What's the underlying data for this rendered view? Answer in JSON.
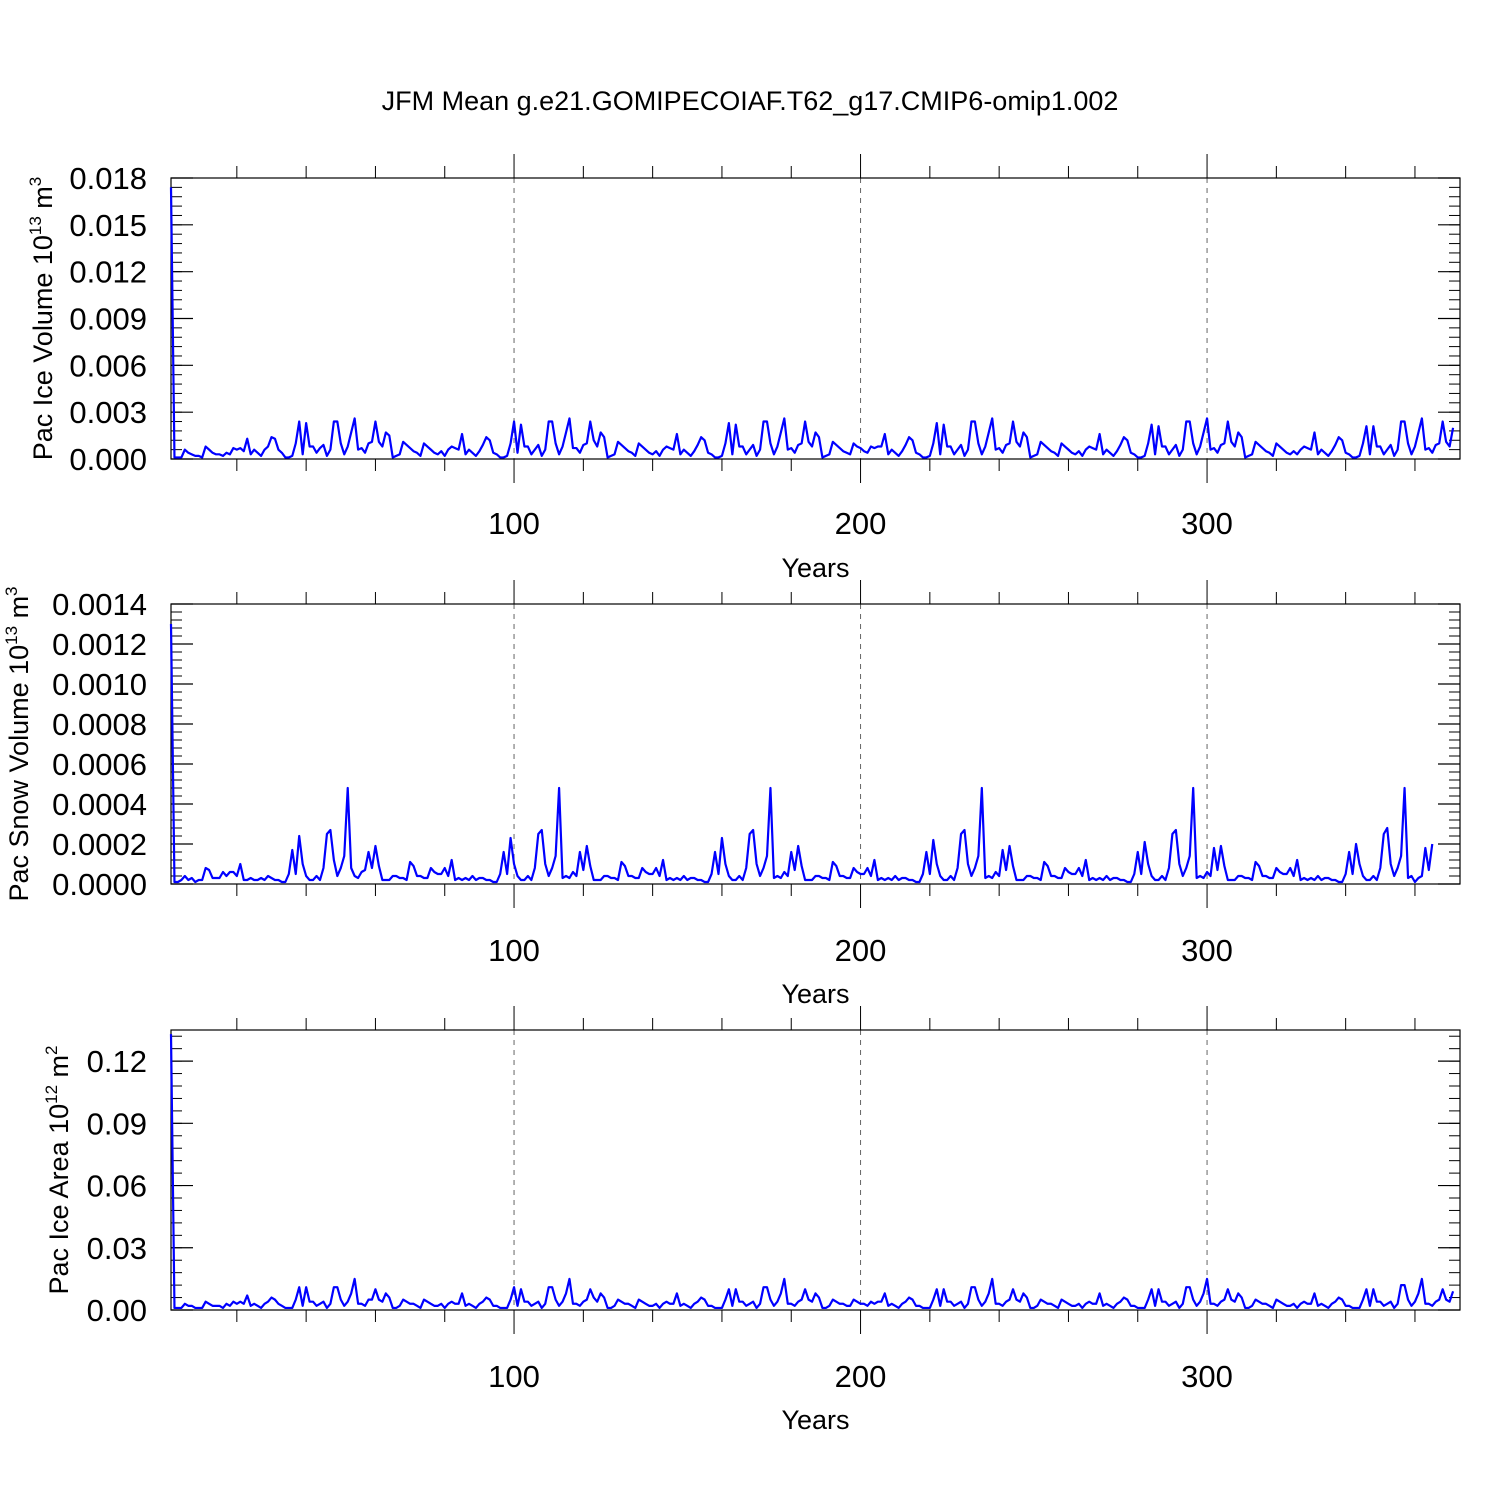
{
  "title": "JFM Mean g.e21.GOMIPECOIAF.T62_g17.CMIP6-omip1.002",
  "colors": {
    "series": "#0000ff",
    "axis": "#000000",
    "grid": "#666666"
  },
  "chart_data": [
    {
      "type": "line",
      "id": "ice-volume",
      "ylabel": {
        "text": "Pac Ice Volume 10",
        "exp": "13",
        "unit": " m",
        "unit_exp": "3"
      },
      "xlabel": "Years",
      "xlim": [
        1,
        373
      ],
      "ylim": [
        0,
        0.018
      ],
      "yticks": [
        0.0,
        0.003,
        0.006,
        0.009,
        0.012,
        0.015,
        0.018
      ],
      "ytick_labels": [
        "0.000",
        "0.003",
        "0.006",
        "0.009",
        "0.012",
        "0.015",
        "0.018"
      ],
      "xticks": [
        100,
        200,
        300
      ],
      "xtick_labels": [
        "100",
        "200",
        "300"
      ],
      "grid_x": true,
      "x_start": 1,
      "values": [
        0.0174,
        0.0001,
        0.0001,
        0.0001,
        0.0006,
        0.0004,
        0.0003,
        0.0002,
        0.0002,
        0.0001,
        0.0008,
        0.0006,
        0.0004,
        0.0003,
        0.0003,
        0.0002,
        0.0004,
        0.0003,
        0.0007,
        0.0006,
        0.0007,
        0.0005,
        0.0013,
        0.0003,
        0.0006,
        0.0004,
        0.0002,
        0.0006,
        0.0008,
        0.0014,
        0.0013,
        0.0006,
        0.0004,
        0.0001,
        0.0001,
        0.0002,
        0.001,
        0.0024,
        0.0003,
        0.0023,
        0.0008,
        0.0008,
        0.0004,
        0.0007,
        0.0009,
        0.0002,
        0.0006,
        0.0024,
        0.0024,
        0.001,
        0.0003,
        0.0008,
        0.0017,
        0.0026,
        0.0006,
        0.0007,
        0.0004,
        0.001,
        0.0011,
        0.0024,
        0.0011,
        0.0008,
        0.0017,
        0.0015,
        0.0001,
        0.0002,
        0.0003,
        0.0011,
        0.0009,
        0.0007,
        0.0005,
        0.0004,
        0.0002,
        0.001,
        0.0008,
        0.0006,
        0.0004,
        0.0003,
        0.0005,
        0.0002,
        0.0006,
        0.0008,
        0.0007,
        0.0006,
        0.0016,
        0.0003,
        0.0006,
        0.0004,
        0.0002,
        0.0005,
        0.0009,
        0.0014,
        0.0012,
        0.0004,
        0.0003,
        0.0001,
        0.0001,
        0.0002,
        0.001,
        0.0024,
        0.0004,
        0.0022,
        0.0008,
        0.0008,
        0.0003,
        0.0006,
        0.0009,
        0.0002,
        0.0006,
        0.0024,
        0.0024,
        0.001,
        0.0003,
        0.0008,
        0.0017,
        0.0026,
        0.0007,
        0.0007,
        0.0004,
        0.0009,
        0.001,
        0.0024,
        0.0012,
        0.0008,
        0.0017,
        0.0014,
        0.0001,
        0.0002,
        0.0003,
        0.0011,
        0.0009,
        0.0007,
        0.0005,
        0.0004,
        0.0002,
        0.001,
        0.0008,
        0.0006,
        0.0004,
        0.0003,
        0.0005,
        0.0002,
        0.0006,
        0.0008,
        0.0007,
        0.0006,
        0.0016,
        0.0003,
        0.0006,
        0.0004,
        0.0002,
        0.0005,
        0.0009,
        0.0014,
        0.0012,
        0.0004,
        0.0003,
        0.0001,
        0.0001,
        0.0002,
        0.001,
        0.0023,
        0.0003,
        0.0022,
        0.0008,
        0.0008,
        0.0003,
        0.0006,
        0.0009,
        0.0002,
        0.0006,
        0.0024,
        0.0024,
        0.001,
        0.0003,
        0.0008,
        0.0017,
        0.0026,
        0.0006,
        0.0007,
        0.0004,
        0.0009,
        0.001,
        0.0024,
        0.0011,
        0.0008,
        0.0017,
        0.0014,
        0.0001,
        0.0002,
        0.0003,
        0.0011,
        0.0009,
        0.0007,
        0.0005,
        0.0004,
        0.0003,
        0.001,
        0.0008,
        0.0007,
        0.0005,
        0.0004,
        0.0008,
        0.0007,
        0.0008,
        0.0008,
        0.0016,
        0.0003,
        0.0006,
        0.0004,
        0.0002,
        0.0005,
        0.0009,
        0.0014,
        0.0012,
        0.0004,
        0.0003,
        0.0001,
        0.0001,
        0.0002,
        0.001,
        0.0023,
        0.0003,
        0.0022,
        0.0008,
        0.0008,
        0.0003,
        0.0006,
        0.0009,
        0.0002,
        0.0006,
        0.0024,
        0.0024,
        0.001,
        0.0003,
        0.0008,
        0.0017,
        0.0026,
        0.0006,
        0.0007,
        0.0004,
        0.0009,
        0.001,
        0.0024,
        0.0011,
        0.0008,
        0.0017,
        0.0014,
        0.0001,
        0.0002,
        0.0003,
        0.0011,
        0.0009,
        0.0007,
        0.0005,
        0.0004,
        0.0002,
        0.001,
        0.0008,
        0.0006,
        0.0004,
        0.0003,
        0.0005,
        0.0002,
        0.0006,
        0.0008,
        0.0007,
        0.0006,
        0.0016,
        0.0003,
        0.0006,
        0.0004,
        0.0002,
        0.0005,
        0.0009,
        0.0014,
        0.0012,
        0.0004,
        0.0003,
        0.0001,
        0.0001,
        0.0002,
        0.001,
        0.0022,
        0.0003,
        0.0021,
        0.0008,
        0.0008,
        0.0003,
        0.0006,
        0.0009,
        0.0002,
        0.0006,
        0.0024,
        0.0024,
        0.001,
        0.0003,
        0.0008,
        0.0017,
        0.0026,
        0.0006,
        0.0007,
        0.0004,
        0.0009,
        0.001,
        0.0024,
        0.0011,
        0.0008,
        0.0017,
        0.0014,
        0.0001,
        0.0002,
        0.0003,
        0.0011,
        0.0009,
        0.0007,
        0.0005,
        0.0004,
        0.0002,
        0.001,
        0.0008,
        0.0006,
        0.0004,
        0.0003,
        0.0005,
        0.0003,
        0.0006,
        0.0008,
        0.0007,
        0.0006,
        0.0017,
        0.0003,
        0.0006,
        0.0004,
        0.0002,
        0.0005,
        0.0009,
        0.0014,
        0.0012,
        0.0004,
        0.0003,
        0.0001,
        0.0001,
        0.0002,
        0.001,
        0.0021,
        0.0003,
        0.0021,
        0.0008,
        0.0008,
        0.0003,
        0.0006,
        0.0009,
        0.0002,
        0.0006,
        0.0024,
        0.0024,
        0.001,
        0.0003,
        0.0008,
        0.0017,
        0.0026,
        0.0006,
        0.0007,
        0.0004,
        0.0009,
        0.001,
        0.0024,
        0.0011,
        0.0008,
        0.002
      ]
    },
    {
      "type": "line",
      "id": "snow-volume",
      "ylabel": {
        "text": "Pac Snow Volume 10",
        "exp": "13",
        "unit": " m",
        "unit_exp": "3"
      },
      "xlabel": "Years",
      "xlim": [
        1,
        373
      ],
      "ylim": [
        0,
        0.0014
      ],
      "yticks": [
        0.0,
        0.0002,
        0.0004,
        0.0006,
        0.0008,
        0.001,
        0.0012,
        0.0014
      ],
      "ytick_labels": [
        "0.0000",
        "0.0002",
        "0.0004",
        "0.0006",
        "0.0008",
        "0.0010",
        "0.0012",
        "0.0014"
      ],
      "xticks": [
        100,
        200,
        300
      ],
      "xtick_labels": [
        "100",
        "200",
        "300"
      ],
      "grid_x": true,
      "x_start": 1,
      "values": [
        0.0013,
        1e-05,
        1e-05,
        2e-05,
        4e-05,
        2e-05,
        3e-05,
        1e-05,
        2e-05,
        2e-05,
        8e-05,
        7e-05,
        3e-05,
        3e-05,
        3e-05,
        6e-05,
        4e-05,
        6e-05,
        6e-05,
        4e-05,
        0.0001,
        2e-05,
        2e-05,
        3e-05,
        2e-05,
        2e-05,
        3e-05,
        2e-05,
        4e-05,
        3e-05,
        2e-05,
        2e-05,
        1e-05,
        1e-05,
        5e-05,
        0.00017,
        5e-05,
        0.00024,
        0.0001,
        4e-05,
        2e-05,
        2e-05,
        4e-05,
        2e-05,
        8e-05,
        0.00025,
        0.00027,
        0.00012,
        4e-05,
        8e-05,
        0.00014,
        0.00048,
        8e-05,
        4e-05,
        3e-05,
        6e-05,
        7e-05,
        0.00016,
        8e-05,
        0.00019,
        9e-05,
        2e-05,
        2e-05,
        2e-05,
        4e-05,
        4e-05,
        3e-05,
        3e-05,
        2e-05,
        0.00011,
        9e-05,
        4e-05,
        4e-05,
        3e-05,
        3e-05,
        8e-05,
        6e-05,
        5e-05,
        5e-05,
        8e-05,
        4e-05,
        0.00012,
        2e-05,
        3e-05,
        2e-05,
        3e-05,
        2e-05,
        4e-05,
        2e-05,
        3e-05,
        3e-05,
        2e-05,
        2e-05,
        1e-05,
        1e-05,
        5e-05,
        0.00016,
        5e-05,
        0.00023,
        0.0001,
        4e-05,
        2e-05,
        2e-05,
        4e-05,
        2e-05,
        8e-05,
        0.00025,
        0.00027,
        0.0001,
        4e-05,
        8e-05,
        0.00014,
        0.00048,
        3e-05,
        4e-05,
        3e-05,
        6e-05,
        4e-05,
        0.00016,
        7e-05,
        0.00019,
        9e-05,
        2e-05,
        2e-05,
        2e-05,
        4e-05,
        4e-05,
        3e-05,
        3e-05,
        2e-05,
        0.00011,
        9e-05,
        4e-05,
        4e-05,
        3e-05,
        3e-05,
        8e-05,
        6e-05,
        5e-05,
        5e-05,
        8e-05,
        4e-05,
        0.00012,
        2e-05,
        3e-05,
        2e-05,
        3e-05,
        2e-05,
        4e-05,
        2e-05,
        3e-05,
        3e-05,
        2e-05,
        2e-05,
        1e-05,
        1e-05,
        5e-05,
        0.00016,
        5e-05,
        0.00023,
        0.0001,
        4e-05,
        2e-05,
        2e-05,
        4e-05,
        2e-05,
        8e-05,
        0.00025,
        0.00027,
        0.0001,
        4e-05,
        8e-05,
        0.00014,
        0.00048,
        3e-05,
        4e-05,
        3e-05,
        6e-05,
        4e-05,
        0.00016,
        7e-05,
        0.00019,
        9e-05,
        2e-05,
        2e-05,
        2e-05,
        4e-05,
        4e-05,
        3e-05,
        3e-05,
        2e-05,
        0.00011,
        9e-05,
        4e-05,
        4e-05,
        3e-05,
        3e-05,
        8e-05,
        6e-05,
        5e-05,
        5e-05,
        8e-05,
        4e-05,
        0.00012,
        2e-05,
        3e-05,
        2e-05,
        3e-05,
        2e-05,
        4e-05,
        2e-05,
        3e-05,
        3e-05,
        2e-05,
        2e-05,
        1e-05,
        1e-05,
        5e-05,
        0.00016,
        5e-05,
        0.00022,
        0.0001,
        4e-05,
        2e-05,
        2e-05,
        4e-05,
        2e-05,
        8e-05,
        0.00025,
        0.00027,
        0.0001,
        4e-05,
        8e-05,
        0.00014,
        0.00048,
        3e-05,
        4e-05,
        3e-05,
        6e-05,
        4e-05,
        0.00017,
        7e-05,
        0.00019,
        9e-05,
        2e-05,
        2e-05,
        2e-05,
        4e-05,
        4e-05,
        3e-05,
        3e-05,
        2e-05,
        0.00011,
        9e-05,
        4e-05,
        4e-05,
        3e-05,
        3e-05,
        8e-05,
        6e-05,
        5e-05,
        5e-05,
        8e-05,
        4e-05,
        0.00012,
        2e-05,
        3e-05,
        2e-05,
        3e-05,
        2e-05,
        4e-05,
        2e-05,
        3e-05,
        3e-05,
        2e-05,
        2e-05,
        1e-05,
        1e-05,
        5e-05,
        0.00016,
        5e-05,
        0.00021,
        0.0001,
        4e-05,
        2e-05,
        2e-05,
        4e-05,
        2e-05,
        8e-05,
        0.00025,
        0.00027,
        0.0001,
        4e-05,
        8e-05,
        0.00014,
        0.00048,
        3e-05,
        4e-05,
        3e-05,
        6e-05,
        4e-05,
        0.00018,
        7e-05,
        0.00019,
        9e-05,
        2e-05,
        2e-05,
        2e-05,
        4e-05,
        4e-05,
        3e-05,
        3e-05,
        2e-05,
        0.00011,
        9e-05,
        4e-05,
        4e-05,
        3e-05,
        3e-05,
        8e-05,
        6e-05,
        5e-05,
        5e-05,
        8e-05,
        4e-05,
        0.00012,
        2e-05,
        3e-05,
        2e-05,
        3e-05,
        2e-05,
        4e-05,
        2e-05,
        3e-05,
        3e-05,
        2e-05,
        2e-05,
        1e-05,
        1e-05,
        5e-05,
        0.00016,
        5e-05,
        0.0002,
        0.0001,
        4e-05,
        2e-05,
        2e-05,
        4e-05,
        2e-05,
        8e-05,
        0.00025,
        0.00028,
        0.0001,
        4e-05,
        8e-05,
        0.00014,
        0.00048,
        3e-05,
        4e-05,
        1e-05,
        3e-05,
        4e-05,
        0.00018,
        7e-05,
        0.0002
      ]
    },
    {
      "type": "line",
      "id": "ice-area",
      "ylabel": {
        "text": "Pac Ice Area 10",
        "exp": "12",
        "unit": " m",
        "unit_exp": "2"
      },
      "xlabel": "Years",
      "xlim": [
        1,
        373
      ],
      "ylim": [
        0,
        0.135
      ],
      "yticks": [
        0.0,
        0.03,
        0.06,
        0.09,
        0.12
      ],
      "ytick_labels": [
        "0.00",
        "0.03",
        "0.06",
        "0.09",
        "0.12"
      ],
      "xticks": [
        100,
        200,
        300
      ],
      "xtick_labels": [
        "100",
        "200",
        "300"
      ],
      "grid_x": true,
      "x_start": 1,
      "values": [
        0.133,
        0.001,
        0.001,
        0.001,
        0.003,
        0.002,
        0.002,
        0.001,
        0.001,
        0.001,
        0.004,
        0.003,
        0.002,
        0.002,
        0.002,
        0.001,
        0.003,
        0.002,
        0.004,
        0.003,
        0.004,
        0.003,
        0.007,
        0.002,
        0.003,
        0.002,
        0.001,
        0.003,
        0.004,
        0.006,
        0.005,
        0.003,
        0.002,
        0.001,
        0.001,
        0.001,
        0.005,
        0.011,
        0.002,
        0.011,
        0.004,
        0.004,
        0.002,
        0.003,
        0.004,
        0.001,
        0.003,
        0.011,
        0.011,
        0.005,
        0.002,
        0.004,
        0.008,
        0.015,
        0.003,
        0.003,
        0.002,
        0.005,
        0.005,
        0.01,
        0.005,
        0.004,
        0.008,
        0.006,
        0.001,
        0.001,
        0.002,
        0.005,
        0.004,
        0.003,
        0.003,
        0.002,
        0.001,
        0.005,
        0.004,
        0.003,
        0.002,
        0.002,
        0.003,
        0.001,
        0.003,
        0.004,
        0.003,
        0.003,
        0.008,
        0.002,
        0.003,
        0.002,
        0.001,
        0.003,
        0.004,
        0.006,
        0.005,
        0.002,
        0.002,
        0.001,
        0.001,
        0.001,
        0.005,
        0.011,
        0.002,
        0.01,
        0.004,
        0.004,
        0.002,
        0.003,
        0.004,
        0.001,
        0.003,
        0.011,
        0.011,
        0.005,
        0.002,
        0.004,
        0.008,
        0.015,
        0.003,
        0.003,
        0.002,
        0.004,
        0.005,
        0.01,
        0.006,
        0.004,
        0.008,
        0.006,
        0.001,
        0.001,
        0.002,
        0.005,
        0.004,
        0.003,
        0.003,
        0.002,
        0.001,
        0.005,
        0.004,
        0.003,
        0.002,
        0.002,
        0.003,
        0.001,
        0.003,
        0.004,
        0.003,
        0.003,
        0.008,
        0.002,
        0.003,
        0.002,
        0.001,
        0.003,
        0.004,
        0.006,
        0.005,
        0.002,
        0.002,
        0.001,
        0.001,
        0.001,
        0.005,
        0.01,
        0.002,
        0.01,
        0.004,
        0.004,
        0.002,
        0.003,
        0.004,
        0.001,
        0.003,
        0.011,
        0.011,
        0.005,
        0.002,
        0.004,
        0.008,
        0.015,
        0.003,
        0.003,
        0.002,
        0.004,
        0.005,
        0.01,
        0.005,
        0.004,
        0.008,
        0.006,
        0.001,
        0.001,
        0.002,
        0.005,
        0.004,
        0.003,
        0.003,
        0.002,
        0.002,
        0.005,
        0.004,
        0.003,
        0.003,
        0.002,
        0.004,
        0.003,
        0.004,
        0.004,
        0.008,
        0.002,
        0.003,
        0.002,
        0.001,
        0.003,
        0.004,
        0.006,
        0.005,
        0.002,
        0.002,
        0.001,
        0.001,
        0.001,
        0.005,
        0.01,
        0.002,
        0.01,
        0.004,
        0.004,
        0.002,
        0.003,
        0.004,
        0.001,
        0.003,
        0.011,
        0.011,
        0.005,
        0.002,
        0.004,
        0.008,
        0.015,
        0.003,
        0.003,
        0.002,
        0.004,
        0.005,
        0.01,
        0.005,
        0.004,
        0.008,
        0.006,
        0.001,
        0.001,
        0.002,
        0.005,
        0.004,
        0.003,
        0.003,
        0.002,
        0.001,
        0.005,
        0.004,
        0.003,
        0.002,
        0.002,
        0.003,
        0.001,
        0.003,
        0.004,
        0.003,
        0.003,
        0.008,
        0.002,
        0.003,
        0.002,
        0.001,
        0.003,
        0.004,
        0.006,
        0.005,
        0.002,
        0.002,
        0.001,
        0.001,
        0.001,
        0.005,
        0.01,
        0.002,
        0.01,
        0.004,
        0.004,
        0.002,
        0.003,
        0.004,
        0.001,
        0.003,
        0.011,
        0.011,
        0.005,
        0.002,
        0.004,
        0.008,
        0.015,
        0.003,
        0.003,
        0.002,
        0.004,
        0.005,
        0.01,
        0.005,
        0.004,
        0.008,
        0.006,
        0.001,
        0.001,
        0.002,
        0.005,
        0.004,
        0.003,
        0.003,
        0.002,
        0.001,
        0.005,
        0.004,
        0.003,
        0.002,
        0.002,
        0.003,
        0.001,
        0.003,
        0.004,
        0.003,
        0.003,
        0.008,
        0.002,
        0.003,
        0.002,
        0.001,
        0.003,
        0.004,
        0.006,
        0.005,
        0.002,
        0.002,
        0.001,
        0.001,
        0.001,
        0.005,
        0.01,
        0.002,
        0.01,
        0.004,
        0.004,
        0.002,
        0.003,
        0.004,
        0.001,
        0.003,
        0.012,
        0.012,
        0.005,
        0.002,
        0.004,
        0.008,
        0.015,
        0.003,
        0.003,
        0.002,
        0.004,
        0.005,
        0.01,
        0.005,
        0.004,
        0.009
      ]
    }
  ]
}
